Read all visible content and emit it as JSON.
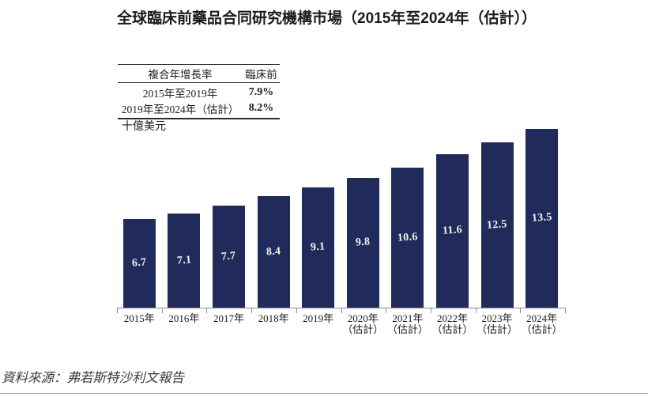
{
  "page": {
    "title": "全球臨床前藥品合同研究機構市場（2015年至2024年（估計））",
    "source_note": "資料來源：弗若斯特沙利文報告"
  },
  "cagr_table": {
    "column_headers": [
      "複合年增長率",
      "臨床前"
    ],
    "rows": [
      {
        "period": "2015年至2019年",
        "cagr": "7.9%"
      },
      {
        "period": "2019年至2024年（估計）",
        "cagr": "8.2%"
      }
    ]
  },
  "chart_data": {
    "type": "bar",
    "title": "全球臨床前藥品合同研究機構市場（2015年至2024年（估計））",
    "unit_label": "十億美元",
    "categories": [
      "2015年",
      "2016年",
      "2017年",
      "2018年",
      "2019年",
      "2020年（估計）",
      "2021年（估計）",
      "2022年（估計）",
      "2023年（估計）",
      "2024年（估計）"
    ],
    "values": [
      6.7,
      7.1,
      7.7,
      8.4,
      9.1,
      9.8,
      10.6,
      11.6,
      12.5,
      13.5
    ],
    "value_labels": [
      "6.7",
      "7.1",
      "7.7",
      "8.4",
      "9.1",
      "9.8",
      "10.6",
      "11.6",
      "12.5",
      "13.5"
    ],
    "ylim": [
      0,
      13.5
    ],
    "xlabel": "",
    "ylabel": "十億美元",
    "grid": "off",
    "legend": "none",
    "bar_color": "#202B5C",
    "value_label_color": "#F3F2EC",
    "axis_color": "#8F8F8F"
  }
}
